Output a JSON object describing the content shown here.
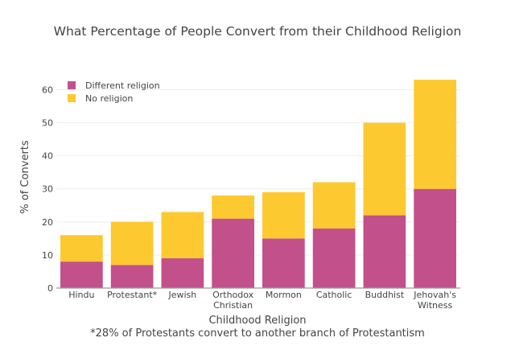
{
  "chart_data": {
    "type": "bar",
    "stacked": true,
    "title": "What Percentage of People Convert from their Childhood Religion",
    "xlabel": "Childhood Religion",
    "ylabel": "% of Converts",
    "footnote": "*28% of Protestants convert to another branch of Protestantism",
    "categories": [
      "Hindu",
      "Protestant*",
      "Jewish",
      "Orthodox Christian",
      "Mormon",
      "Catholic",
      "Buddhist",
      "Jehovah's Witness"
    ],
    "series": [
      {
        "name": "Different religion",
        "color": "#c2518b",
        "values": [
          8,
          7,
          9,
          21,
          15,
          18,
          22,
          30
        ]
      },
      {
        "name": "No religion",
        "color": "#fdc930",
        "values": [
          8,
          13,
          14,
          7,
          14,
          14,
          28,
          33
        ]
      }
    ],
    "ylim": [
      0,
      65
    ],
    "yticks": [
      0,
      10,
      20,
      30,
      40,
      50,
      60
    ],
    "grid": true,
    "legend": "top-left"
  }
}
